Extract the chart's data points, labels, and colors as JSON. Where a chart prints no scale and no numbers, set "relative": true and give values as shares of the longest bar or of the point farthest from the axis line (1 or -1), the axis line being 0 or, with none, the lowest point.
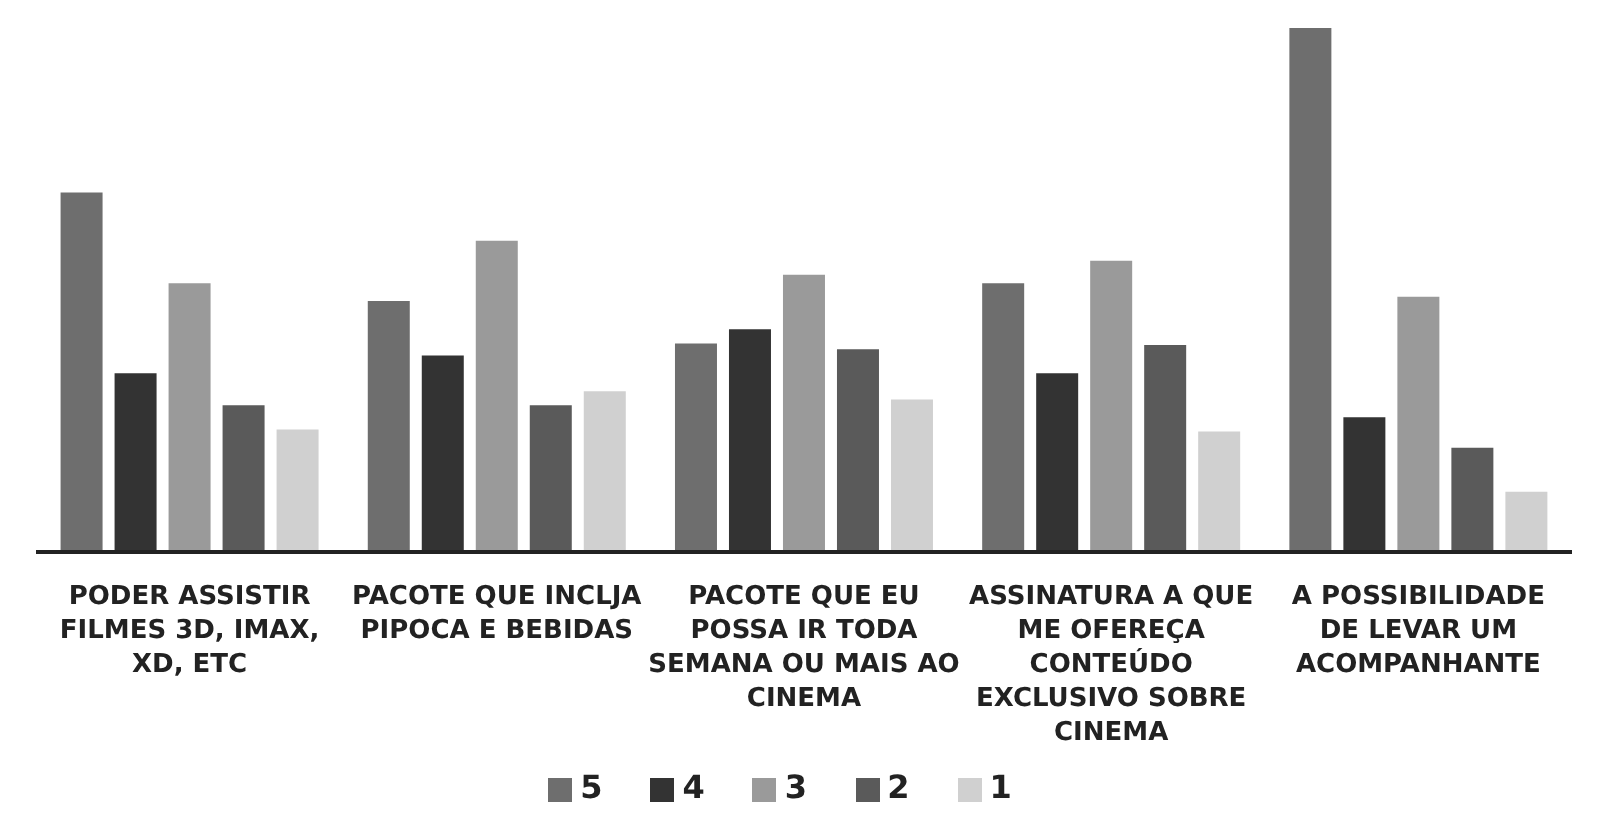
{
  "chart_data": {
    "type": "bar",
    "relative": true,
    "legend": "bottom",
    "grid": false,
    "categories": [
      "PODER ASSISTIR FILMES 3D, IMAX, XD, ETC",
      "PACOTE QUE INCLJA PIPOCA E BEBIDAS",
      "PACOTE QUE EU POSSA IR TODA SEMANA OU MAIS AO CINEMA",
      "ASSINATURA A QUE ME OFEREÇA CONTEÚDO EXCLUSIVO SOBRE CINEMA",
      "A POSSIBILIDADE DE LEVAR UM ACOMPANHANTE"
    ],
    "series": [
      {
        "name": "5",
        "color": "#6e6e6e",
        "values": [
          0.686,
          0.479,
          0.398,
          0.513,
          1
        ]
      },
      {
        "name": "4",
        "color": "#333333",
        "values": [
          0.341,
          0.375,
          0.425,
          0.341,
          0.257
        ]
      },
      {
        "name": "3",
        "color": "#9a9a9a",
        "values": [
          0.513,
          0.594,
          0.529,
          0.556,
          0.487
        ]
      },
      {
        "name": "2",
        "color": "#5a5a5a",
        "values": [
          0.28,
          0.28,
          0.387,
          0.395,
          0.199
        ]
      },
      {
        "name": "1",
        "color": "#d0d0d0",
        "values": [
          0.234,
          0.307,
          0.291,
          0.23,
          0.115
        ]
      }
    ]
  }
}
